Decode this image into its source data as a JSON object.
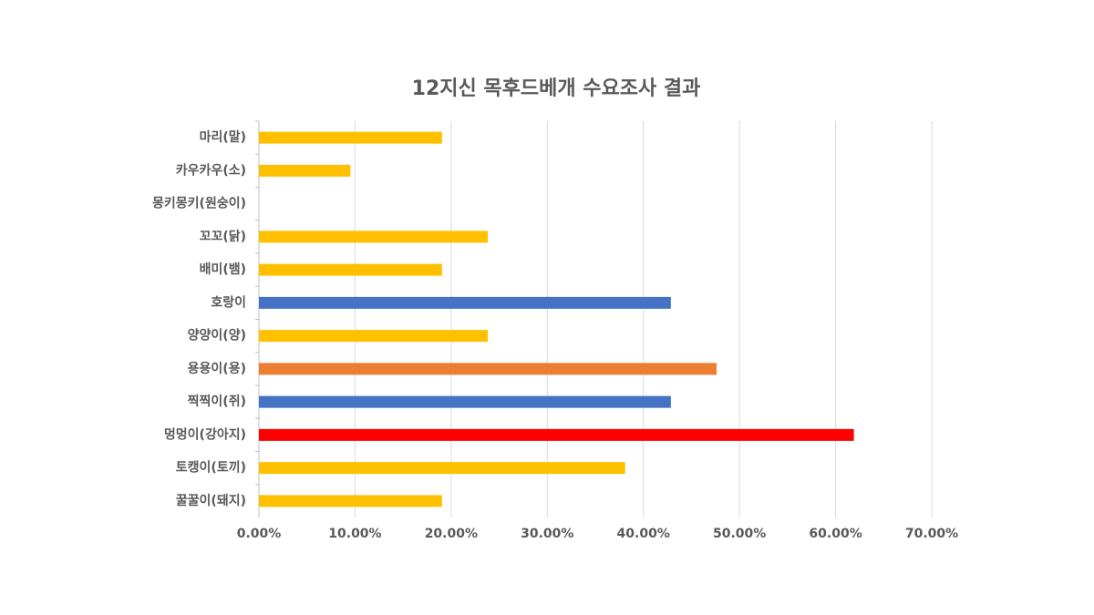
{
  "chart_data": {
    "type": "barh",
    "title": "12지신 목후드베개 수요조사 결과",
    "categories": [
      "마리(말)",
      "카우카우(소)",
      "몽키몽키(원숭이)",
      "꼬꼬(닭)",
      "배미(뱀)",
      "호랑이",
      "양양이(양)",
      "용용이(용)",
      "찍찍이(쥐)",
      "멍멍이(강아지)",
      "토캥이(토끼)",
      "꿀꿀이(돼지)"
    ],
    "values": [
      19.05,
      9.52,
      0,
      23.81,
      19.05,
      42.86,
      23.81,
      47.62,
      42.86,
      61.9,
      38.1,
      19.05
    ],
    "colors": [
      "#ffc000",
      "#ffc000",
      "#ffc000",
      "#ffc000",
      "#ffc000",
      "#4472c4",
      "#ffc000",
      "#ed7d31",
      "#4472c4",
      "#ff0000",
      "#ffc000",
      "#ffc000"
    ],
    "xlim": [
      0,
      70
    ],
    "xticks": [
      {
        "value": 0,
        "label": "0.00%"
      },
      {
        "value": 10,
        "label": "10.00%"
      },
      {
        "value": 20,
        "label": "20.00%"
      },
      {
        "value": 30,
        "label": "30.00%"
      },
      {
        "value": 40,
        "label": "40.00%"
      },
      {
        "value": 50,
        "label": "50.00%"
      },
      {
        "value": 60,
        "label": "60.00%"
      },
      {
        "value": 70,
        "label": "70.00%"
      }
    ],
    "grid": true
  }
}
